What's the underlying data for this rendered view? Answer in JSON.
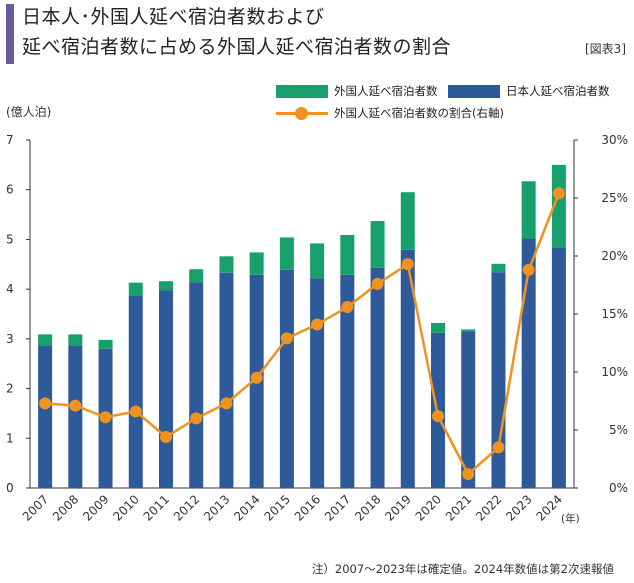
{
  "header": {
    "title_line1": "日本人･外国人延べ宿泊者数および",
    "title_line2": "延べ宿泊者数に占める外国人延べ宿泊者数の割合",
    "figure_label": "[図表3]"
  },
  "legend": {
    "foreign": "外国人延べ宿泊者数",
    "japanese": "日本人延べ宿泊者数",
    "share": "外国人延べ宿泊者数の割合(右軸)"
  },
  "colors": {
    "japanese": "#2f5a99",
    "foreign": "#17a06b",
    "share": "#f0921f"
  },
  "note": "注）2007～2023年は確定値。2024年数値は第2次速報値",
  "chart_data": {
    "type": "bar",
    "stacked": true,
    "left_unit_label": "(億人泊)",
    "x_unit_label": "(年)",
    "categories": [
      "2007",
      "2008",
      "2009",
      "2010",
      "2011",
      "2012",
      "2013",
      "2014",
      "2015",
      "2016",
      "2017",
      "2018",
      "2019",
      "2020",
      "2021",
      "2022",
      "2023",
      "2024"
    ],
    "series": [
      {
        "name": "日本人延べ宿泊者数",
        "axis": "left",
        "values": [
          2.87,
          2.87,
          2.8,
          3.87,
          3.98,
          4.14,
          4.33,
          4.29,
          4.39,
          4.22,
          4.29,
          4.43,
          4.79,
          3.12,
          3.15,
          4.34,
          5.02,
          4.84
        ]
      },
      {
        "name": "外国人延べ宿泊者数",
        "axis": "left",
        "values": [
          0.22,
          0.22,
          0.18,
          0.26,
          0.18,
          0.26,
          0.33,
          0.45,
          0.65,
          0.7,
          0.8,
          0.94,
          1.16,
          0.2,
          0.04,
          0.17,
          1.15,
          1.66
        ]
      },
      {
        "name": "外国人延べ宿泊者数の割合(右軸)",
        "axis": "right",
        "type": "line",
        "values": [
          7.3,
          7.1,
          6.1,
          6.6,
          4.4,
          6.0,
          7.3,
          9.5,
          12.9,
          14.1,
          15.6,
          17.6,
          19.3,
          6.2,
          1.2,
          3.5,
          18.8,
          25.4
        ]
      }
    ],
    "ylim": [
      0,
      7
    ],
    "yticks": [
      0,
      1,
      2,
      3,
      4,
      5,
      6,
      7
    ],
    "y2lim": [
      0,
      30
    ],
    "y2ticks": [
      "0%",
      "5%",
      "10%",
      "15%",
      "20%",
      "25%",
      "30%"
    ]
  }
}
